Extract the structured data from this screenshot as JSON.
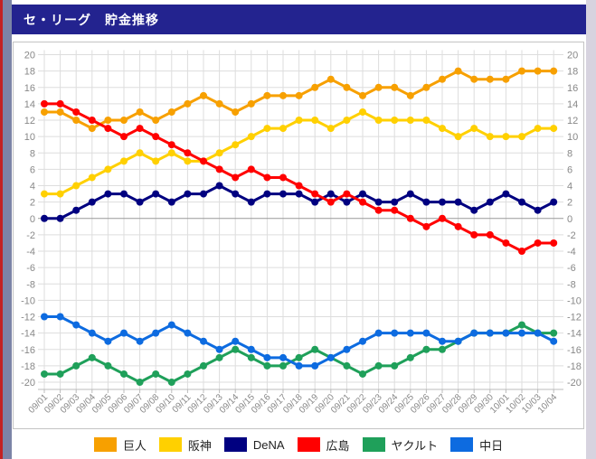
{
  "header": {
    "title": "セ・リーグ　貯金推移"
  },
  "chart_data": {
    "type": "line",
    "title": "セ・リーグ　貯金推移",
    "xlabel": "",
    "ylabel": "",
    "ylim": [
      -20,
      20
    ],
    "ytick_step": 2,
    "grid": true,
    "legend_position": "bottom",
    "x": [
      "09/01",
      "09/02",
      "09/03",
      "09/04",
      "09/05",
      "09/06",
      "09/07",
      "09/08",
      "09/10",
      "09/11",
      "09/12",
      "09/13",
      "09/14",
      "09/15",
      "09/16",
      "09/17",
      "09/18",
      "09/19",
      "09/20",
      "09/21",
      "09/22",
      "09/23",
      "09/24",
      "09/25",
      "09/26",
      "09/27",
      "09/28",
      "09/29",
      "09/30",
      "10/01",
      "10/02",
      "10/03",
      "10/04"
    ],
    "series": [
      {
        "name": "巨人",
        "color": "#F7A000",
        "values": [
          13,
          13,
          12,
          11,
          12,
          12,
          13,
          12,
          13,
          14,
          15,
          14,
          13,
          14,
          15,
          15,
          15,
          16,
          17,
          16,
          15,
          16,
          16,
          15,
          16,
          17,
          18,
          17,
          17,
          17,
          18,
          18,
          18
        ]
      },
      {
        "name": "阪神",
        "color": "#FFD000",
        "values": [
          3,
          3,
          4,
          5,
          6,
          7,
          8,
          7,
          8,
          7,
          7,
          8,
          9,
          10,
          11,
          11,
          12,
          12,
          11,
          12,
          13,
          12,
          12,
          12,
          12,
          11,
          10,
          11,
          10,
          10,
          10,
          11,
          11
        ]
      },
      {
        "name": "DeNA",
        "color": "#000080",
        "values": [
          0,
          0,
          1,
          2,
          3,
          3,
          2,
          3,
          2,
          3,
          3,
          4,
          3,
          2,
          3,
          3,
          3,
          2,
          3,
          2,
          3,
          2,
          2,
          3,
          2,
          2,
          2,
          1,
          2,
          3,
          2,
          1,
          2
        ]
      },
      {
        "name": "広島",
        "color": "#FF0000",
        "values": [
          14,
          14,
          13,
          12,
          11,
          10,
          11,
          10,
          9,
          8,
          7,
          6,
          5,
          6,
          5,
          5,
          4,
          3,
          2,
          3,
          2,
          1,
          1,
          0,
          -1,
          0,
          -1,
          -2,
          -2,
          -3,
          -4,
          -3,
          -3
        ]
      },
      {
        "name": "ヤクルト",
        "color": "#1FA05A",
        "values": [
          -19,
          -19,
          -18,
          -17,
          -18,
          -19,
          -20,
          -19,
          -20,
          -19,
          -18,
          -17,
          -16,
          -17,
          -18,
          -18,
          -17,
          -16,
          -17,
          -18,
          -19,
          -18,
          -18,
          -17,
          -16,
          -16,
          -15,
          -14,
          -14,
          -14,
          -13,
          -14,
          -14
        ]
      },
      {
        "name": "中日",
        "color": "#0D6BE0",
        "values": [
          -12,
          -12,
          -13,
          -14,
          -15,
          -14,
          -15,
          -14,
          -13,
          -14,
          -15,
          -16,
          -15,
          -16,
          -17,
          -17,
          -18,
          -18,
          -17,
          -16,
          -15,
          -14,
          -14,
          -14,
          -14,
          -15,
          -15,
          -14,
          -14,
          -14,
          -14,
          -14,
          -15
        ]
      }
    ]
  },
  "colors": {
    "header_bg": "#23238F",
    "grid_line": "#DDDDDD",
    "zero_line": "#999999",
    "axis_line": "#BBBBBB",
    "axis_text": "#888888",
    "edge_red": "#C32222",
    "edge_slate": "#7C84A6",
    "edge_right": "#D7D3DF"
  }
}
